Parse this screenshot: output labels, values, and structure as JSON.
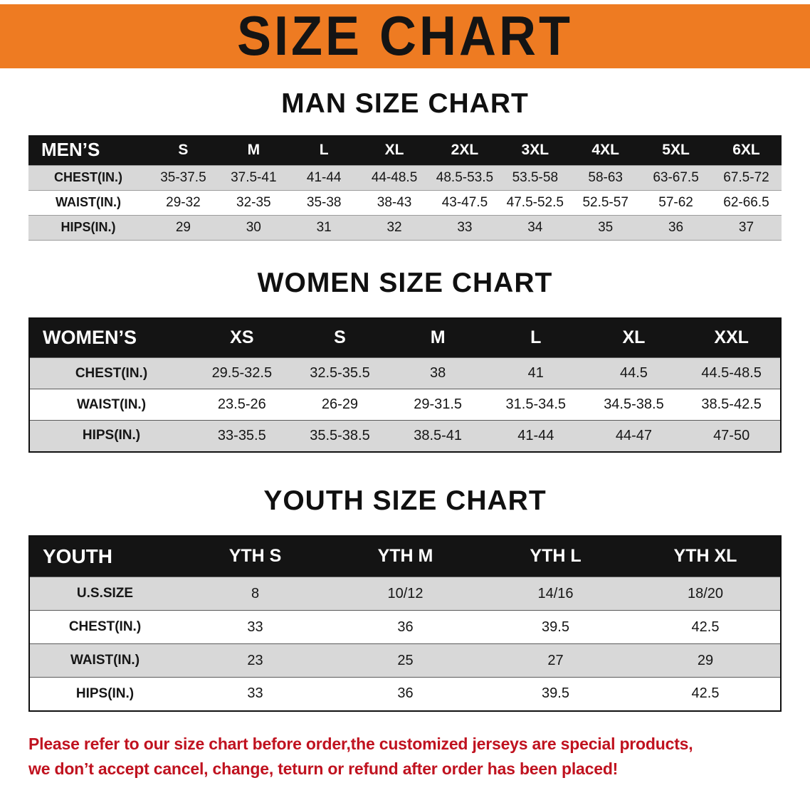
{
  "banner": {
    "title": "SIZE CHART"
  },
  "sections": [
    {
      "heading": "MAN SIZE CHART",
      "table": {
        "header": [
          "MEN’S",
          "S",
          "M",
          "L",
          "XL",
          "2XL",
          "3XL",
          "4XL",
          "5XL",
          "6XL"
        ],
        "rows": [
          [
            "CHEST(IN.)",
            "35-37.5",
            "37.5-41",
            "41-44",
            "44-48.5",
            "48.5-53.5",
            "53.5-58",
            "58-63",
            "63-67.5",
            "67.5-72"
          ],
          [
            "WAIST(IN.)",
            "29-32",
            "32-35",
            "35-38",
            "38-43",
            "43-47.5",
            "47.5-52.5",
            "52.5-57",
            "57-62",
            "62-66.5"
          ],
          [
            "HIPS(IN.)",
            "29",
            "30",
            "31",
            "32",
            "33",
            "34",
            "35",
            "36",
            "37"
          ]
        ]
      }
    },
    {
      "heading": "WOMEN SIZE CHART",
      "table": {
        "header": [
          "WOMEN’S",
          "XS",
          "S",
          "M",
          "L",
          "XL",
          "XXL"
        ],
        "rows": [
          [
            "CHEST(IN.)",
            "29.5-32.5",
            "32.5-35.5",
            "38",
            "41",
            "44.5",
            "44.5-48.5"
          ],
          [
            "WAIST(IN.)",
            "23.5-26",
            "26-29",
            "29-31.5",
            "31.5-34.5",
            "34.5-38.5",
            "38.5-42.5"
          ],
          [
            "HIPS(IN.)",
            "33-35.5",
            "35.5-38.5",
            "38.5-41",
            "41-44",
            "44-47",
            "47-50"
          ]
        ]
      }
    },
    {
      "heading": "YOUTH SIZE CHART",
      "table": {
        "header": [
          "YOUTH",
          "YTH S",
          "YTH M",
          "YTH L",
          "YTH XL"
        ],
        "rows": [
          [
            "U.S.SIZE",
            "8",
            "10/12",
            "14/16",
            "18/20"
          ],
          [
            "CHEST(IN.)",
            "33",
            "36",
            "39.5",
            "42.5"
          ],
          [
            "WAIST(IN.)",
            "23",
            "25",
            "27",
            "29"
          ],
          [
            "HIPS(IN.)",
            "33",
            "36",
            "39.5",
            "42.5"
          ]
        ]
      }
    }
  ],
  "footer_note": {
    "lines": [
      "Please refer to our size chart before order,the customized jerseys are special products,",
      "we don’t accept cancel, change, teturn or refund after order has been placed!"
    ]
  },
  "colors": {
    "banner-bg": "#ee7b22",
    "header-bg": "#141414",
    "header-text": "#ffffff",
    "stripe": "#d8d8d8",
    "note-red": "#c0121f",
    "text": "#111111"
  }
}
